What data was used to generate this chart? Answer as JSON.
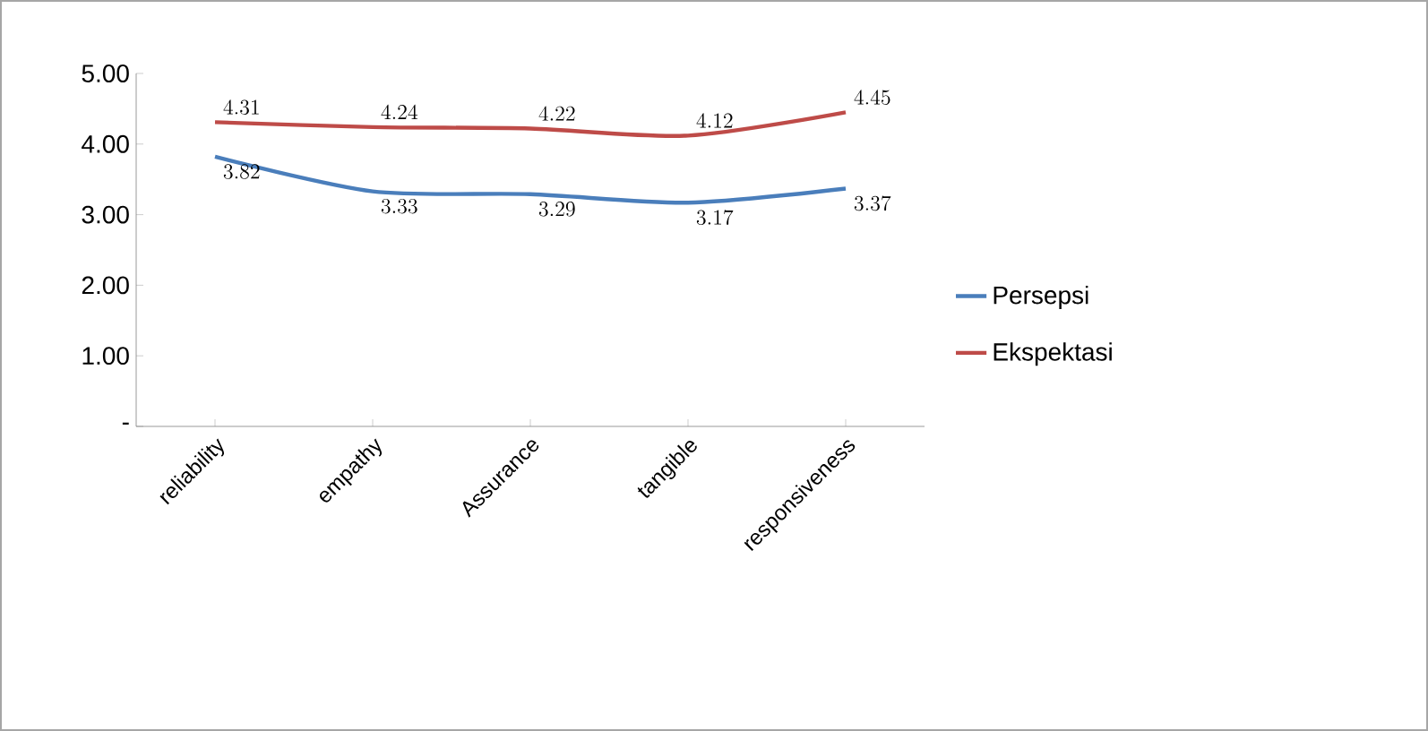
{
  "chart_data": {
    "type": "line",
    "categories": [
      "reliability",
      "empathy",
      "Assurance",
      "tangible",
      "responsiveness"
    ],
    "series": [
      {
        "name": "Persepsi",
        "color": "#4a7ebb",
        "values": [
          3.82,
          3.33,
          3.29,
          3.17,
          3.37
        ]
      },
      {
        "name": "Ekspektasi",
        "color": "#be4b48",
        "values": [
          4.31,
          4.24,
          4.22,
          4.12,
          4.45
        ]
      }
    ],
    "ylim": [
      0,
      5
    ],
    "yticks": [
      {
        "value": 0,
        "label": "-"
      },
      {
        "value": 1,
        "label": "1.00"
      },
      {
        "value": 2,
        "label": "2.00"
      },
      {
        "value": 3,
        "label": "3.00"
      },
      {
        "value": 4,
        "label": "4.00"
      },
      {
        "value": 5,
        "label": "5.00"
      }
    ],
    "data_labels": true,
    "legend": "right",
    "marker": "none",
    "line_style": "solid",
    "grid": false
  }
}
